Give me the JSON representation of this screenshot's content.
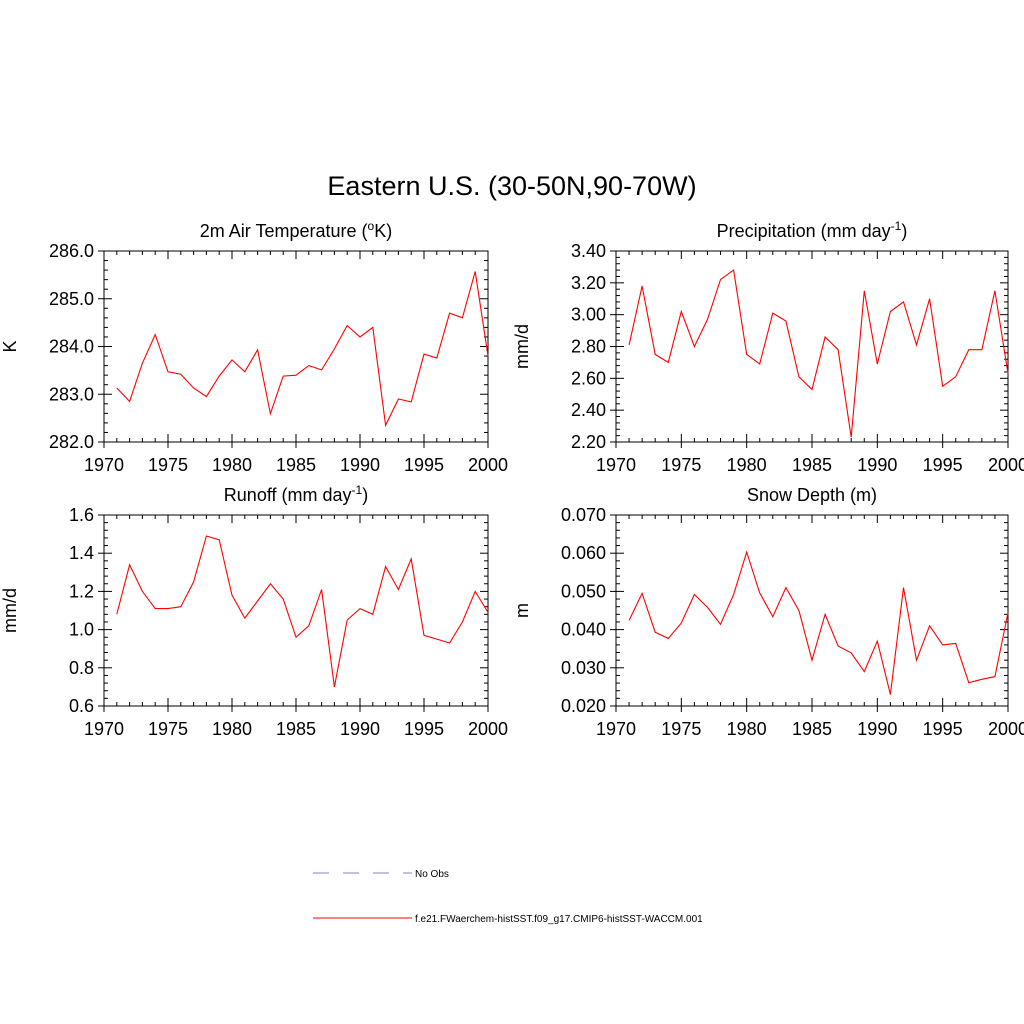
{
  "figure": {
    "title": "Eastern U.S. (30-50N,90-70W)",
    "line_color": "#ff0000",
    "obs_color": "#9999dd"
  },
  "legend": {
    "obs_label": "No Obs",
    "model_label": "f.e21.FWaerchem-histSST.f09_g17.CMIP6-histSST-WACCM.001"
  },
  "chart_data": [
    {
      "type": "line",
      "title": "2m Air Temperature (",
      "title_sup": "o",
      "title_tail": "K)",
      "ylabel": "K",
      "xlim": [
        1970,
        2000
      ],
      "ylim": [
        282.0,
        286.0
      ],
      "xticks": [
        "1970",
        "1975",
        "1980",
        "1985",
        "1990",
        "1995",
        "2000"
      ],
      "yticks": [
        "282.0",
        "283.0",
        "284.0",
        "285.0",
        "286.0"
      ],
      "ytick_values": [
        282.0,
        283.0,
        284.0,
        285.0,
        286.0
      ],
      "x": [
        1971,
        1972,
        1973,
        1974,
        1975,
        1976,
        1977,
        1978,
        1979,
        1980,
        1981,
        1982,
        1983,
        1984,
        1985,
        1986,
        1987,
        1988,
        1989,
        1990,
        1991,
        1992,
        1993,
        1994,
        1995,
        1996,
        1997,
        1998,
        1999,
        2000
      ],
      "series": [
        {
          "values": [
            283.13,
            282.85,
            283.65,
            284.25,
            283.47,
            283.42,
            283.13,
            282.95,
            283.38,
            283.72,
            283.47,
            283.93,
            282.59,
            283.38,
            283.4,
            283.6,
            283.51,
            283.95,
            284.44,
            284.2,
            284.4,
            282.35,
            282.9,
            282.84,
            283.84,
            283.76,
            284.7,
            284.6,
            285.57,
            283.8
          ]
        }
      ]
    },
    {
      "type": "line",
      "title": "Precipitation (mm day",
      "title_sup": "-1",
      "title_tail": ")",
      "ylabel": "mm/d",
      "xlim": [
        1970,
        2000
      ],
      "ylim": [
        2.2,
        3.4
      ],
      "xticks": [
        "1970",
        "1975",
        "1980",
        "1985",
        "1990",
        "1995",
        "2000"
      ],
      "yticks": [
        "2.20",
        "2.40",
        "2.60",
        "2.80",
        "3.00",
        "3.20",
        "3.40"
      ],
      "ytick_values": [
        2.2,
        2.4,
        2.6,
        2.8,
        3.0,
        3.2,
        3.4
      ],
      "x": [
        1971,
        1972,
        1973,
        1974,
        1975,
        1976,
        1977,
        1978,
        1979,
        1980,
        1981,
        1982,
        1983,
        1984,
        1985,
        1986,
        1987,
        1988,
        1989,
        1990,
        1991,
        1992,
        1993,
        1994,
        1995,
        1996,
        1997,
        1998,
        1999,
        2000
      ],
      "series": [
        {
          "values": [
            2.81,
            3.18,
            2.75,
            2.7,
            3.02,
            2.8,
            2.97,
            3.22,
            3.28,
            2.75,
            2.69,
            3.01,
            2.96,
            2.61,
            2.53,
            2.86,
            2.78,
            2.23,
            3.15,
            2.69,
            3.02,
            3.08,
            2.81,
            3.1,
            2.55,
            2.61,
            2.78,
            2.78,
            3.15,
            2.63
          ]
        }
      ]
    },
    {
      "type": "line",
      "title": "Runoff (mm day",
      "title_sup": "-1",
      "title_tail": ")",
      "ylabel": "mm/d",
      "xlim": [
        1970,
        2000
      ],
      "ylim": [
        0.6,
        1.6
      ],
      "xticks": [
        "1970",
        "1975",
        "1980",
        "1985",
        "1990",
        "1995",
        "2000"
      ],
      "yticks": [
        "0.6",
        "0.8",
        "1.0",
        "1.2",
        "1.4",
        "1.6"
      ],
      "ytick_values": [
        0.6,
        0.8,
        1.0,
        1.2,
        1.4,
        1.6
      ],
      "x": [
        1971,
        1972,
        1973,
        1974,
        1975,
        1976,
        1977,
        1978,
        1979,
        1980,
        1981,
        1982,
        1983,
        1984,
        1985,
        1986,
        1987,
        1988,
        1989,
        1990,
        1991,
        1992,
        1993,
        1994,
        1995,
        1996,
        1997,
        1998,
        1999,
        2000
      ],
      "series": [
        {
          "values": [
            1.08,
            1.34,
            1.2,
            1.11,
            1.11,
            1.12,
            1.25,
            1.49,
            1.47,
            1.18,
            1.06,
            1.15,
            1.24,
            1.16,
            0.96,
            1.02,
            1.21,
            0.7,
            1.05,
            1.11,
            1.08,
            1.33,
            1.21,
            1.37,
            0.97,
            0.95,
            0.93,
            1.04,
            1.2,
            1.09
          ]
        }
      ]
    },
    {
      "type": "line",
      "title": "Snow Depth (m)",
      "title_sup": "",
      "title_tail": "",
      "ylabel": "m",
      "xlim": [
        1970,
        2000
      ],
      "ylim": [
        0.02,
        0.07
      ],
      "xticks": [
        "1970",
        "1975",
        "1980",
        "1985",
        "1990",
        "1995",
        "2000"
      ],
      "yticks": [
        "0.020",
        "0.030",
        "0.040",
        "0.050",
        "0.060",
        "0.070"
      ],
      "ytick_values": [
        0.02,
        0.03,
        0.04,
        0.05,
        0.06,
        0.07
      ],
      "x": [
        1971,
        1972,
        1973,
        1974,
        1975,
        1976,
        1977,
        1978,
        1979,
        1980,
        1981,
        1982,
        1983,
        1984,
        1985,
        1986,
        1987,
        1988,
        1989,
        1990,
        1991,
        1992,
        1993,
        1994,
        1995,
        1996,
        1997,
        1998,
        1999,
        2000
      ],
      "series": [
        {
          "values": [
            0.0424,
            0.0495,
            0.0393,
            0.0377,
            0.0417,
            0.0492,
            0.0458,
            0.0414,
            0.0492,
            0.0603,
            0.0496,
            0.0434,
            0.051,
            0.045,
            0.032,
            0.044,
            0.0357,
            0.0339,
            0.029,
            0.037,
            0.023,
            0.051,
            0.032,
            0.041,
            0.036,
            0.0364,
            0.0261,
            0.027,
            0.0277,
            0.0444
          ]
        }
      ]
    }
  ]
}
